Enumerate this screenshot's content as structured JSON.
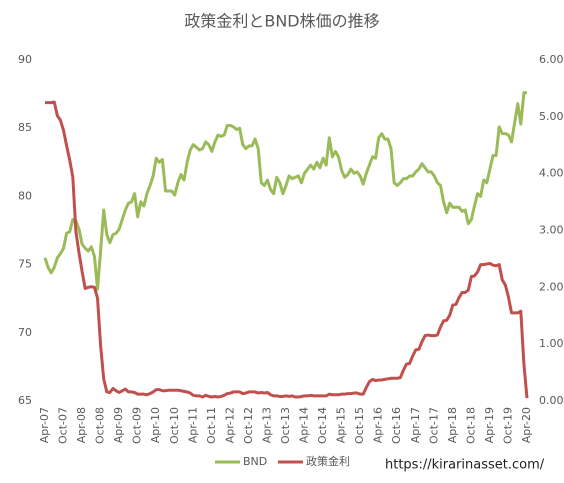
{
  "chart_data": {
    "type": "line",
    "title": "政策金利とBND株価の推移",
    "categories": [
      "Apr-07",
      null,
      null,
      null,
      null,
      null,
      "Oct-07",
      null,
      null,
      null,
      null,
      null,
      "Apr-08",
      null,
      null,
      null,
      null,
      null,
      "Oct-08",
      null,
      null,
      null,
      null,
      null,
      "Apr-09",
      null,
      null,
      null,
      null,
      null,
      "Oct-09",
      null,
      null,
      null,
      null,
      null,
      "Apr-10",
      null,
      null,
      null,
      null,
      null,
      "Oct-10",
      null,
      null,
      null,
      null,
      null,
      "Apr-11",
      null,
      null,
      null,
      null,
      null,
      "Oct-11",
      null,
      null,
      null,
      null,
      null,
      "Apr-12",
      null,
      null,
      null,
      null,
      null,
      "Oct-12",
      null,
      null,
      null,
      null,
      null,
      "Apr-13",
      null,
      null,
      null,
      null,
      null,
      "Oct-13",
      null,
      null,
      null,
      null,
      null,
      "Apr-14",
      null,
      null,
      null,
      null,
      null,
      "Oct-14",
      null,
      null,
      null,
      null,
      null,
      "Apr-15",
      null,
      null,
      null,
      null,
      null,
      "Oct-15",
      null,
      null,
      null,
      null,
      null,
      "Apr-16",
      null,
      null,
      null,
      null,
      null,
      "Oct-16",
      null,
      null,
      null,
      null,
      null,
      "Apr-17",
      null,
      null,
      null,
      null,
      null,
      "Oct-17",
      null,
      null,
      null,
      null,
      null,
      "Apr-18",
      null,
      null,
      null,
      null,
      null,
      "Oct-18",
      null,
      null,
      null,
      null,
      null,
      "Apr-19",
      null,
      null,
      null,
      null,
      null,
      "Oct-19",
      null,
      null,
      null,
      null,
      null,
      "Apr-20"
    ],
    "series": [
      {
        "name": "BND",
        "color": "#9bbb59",
        "values": [
          75.5,
          74.8,
          74.4,
          74.8,
          75.5,
          75.8,
          76.2,
          77.3,
          77.4,
          78.3,
          78.2,
          77.6,
          76.5,
          76.2,
          76.0,
          76.3,
          75.6,
          73.2,
          76.0,
          79.0,
          77.2,
          76.6,
          77.2,
          77.3,
          77.6,
          78.3,
          79.0,
          79.5,
          79.6,
          80.2,
          78.5,
          79.6,
          79.3,
          80.2,
          80.8,
          81.5,
          82.8,
          82.5,
          82.7,
          80.4,
          80.4,
          80.4,
          80.1,
          81.0,
          81.6,
          81.2,
          82.5,
          83.4,
          83.8,
          83.6,
          83.4,
          83.5,
          84.0,
          83.8,
          83.3,
          84.0,
          84.5,
          84.4,
          84.5,
          85.2,
          85.2,
          85.1,
          84.9,
          85.0,
          83.8,
          83.5,
          83.7,
          83.7,
          84.2,
          83.5,
          81.0,
          80.8,
          81.2,
          80.5,
          80.2,
          81.4,
          81.0,
          80.2,
          80.8,
          81.5,
          81.3,
          81.4,
          81.5,
          81.0,
          81.7,
          82.0,
          82.3,
          82.0,
          82.5,
          82.1,
          82.8,
          82.3,
          84.3,
          82.9,
          83.3,
          82.9,
          81.9,
          81.4,
          81.6,
          82.0,
          81.7,
          81.8,
          81.5,
          80.9,
          81.7,
          82.3,
          82.9,
          82.8,
          84.3,
          84.6,
          84.2,
          84.2,
          83.5,
          81.0,
          80.8,
          81.0,
          81.3,
          81.3,
          81.5,
          81.5,
          81.8,
          82.0,
          82.4,
          82.1,
          81.8,
          81.8,
          81.5,
          81.0,
          80.8,
          79.6,
          78.8,
          79.5,
          79.2,
          79.2,
          79.2,
          78.9,
          79.0,
          78.0,
          78.3,
          79.3,
          80.2,
          80.0,
          81.2,
          81.0,
          82.0,
          83.0,
          83.0,
          85.1,
          84.6,
          84.6,
          84.5,
          84.0,
          85.4,
          86.8,
          85.3,
          87.6,
          87.6
        ]
      },
      {
        "name": "政策金利",
        "color": "#c0504d",
        "axis": "y2",
        "values": [
          5.25,
          5.25,
          5.25,
          5.26,
          5.02,
          4.94,
          4.76,
          4.49,
          4.24,
          3.94,
          2.98,
          2.61,
          2.28,
          1.98,
          2.0,
          2.01,
          2.0,
          1.81,
          0.97,
          0.39,
          0.16,
          0.15,
          0.22,
          0.18,
          0.15,
          0.18,
          0.21,
          0.16,
          0.16,
          0.15,
          0.12,
          0.12,
          0.12,
          0.11,
          0.13,
          0.16,
          0.2,
          0.2,
          0.18,
          0.18,
          0.19,
          0.19,
          0.19,
          0.19,
          0.18,
          0.17,
          0.16,
          0.14,
          0.1,
          0.09,
          0.09,
          0.07,
          0.1,
          0.08,
          0.07,
          0.08,
          0.07,
          0.08,
          0.1,
          0.13,
          0.14,
          0.16,
          0.16,
          0.16,
          0.13,
          0.14,
          0.16,
          0.16,
          0.16,
          0.14,
          0.15,
          0.14,
          0.15,
          0.11,
          0.09,
          0.09,
          0.08,
          0.08,
          0.09,
          0.08,
          0.09,
          0.07,
          0.07,
          0.08,
          0.09,
          0.09,
          0.1,
          0.09,
          0.09,
          0.09,
          0.09,
          0.09,
          0.12,
          0.11,
          0.11,
          0.11,
          0.12,
          0.12,
          0.13,
          0.13,
          0.14,
          0.14,
          0.12,
          0.12,
          0.24,
          0.34,
          0.38,
          0.36,
          0.37,
          0.37,
          0.38,
          0.39,
          0.4,
          0.4,
          0.4,
          0.41,
          0.54,
          0.65,
          0.66,
          0.79,
          0.9,
          0.91,
          1.04,
          1.15,
          1.16,
          1.15,
          1.15,
          1.16,
          1.3,
          1.41,
          1.42,
          1.51,
          1.69,
          1.7,
          1.82,
          1.91,
          1.91,
          1.95,
          2.19,
          2.2,
          2.27,
          2.4,
          2.4,
          2.41,
          2.42,
          2.39,
          2.38,
          2.4,
          2.13,
          2.04,
          1.83,
          1.55,
          1.55,
          1.55,
          1.58,
          0.65,
          0.05
        ]
      }
    ],
    "ylim": [
      65,
      90
    ],
    "yticks": [
      65,
      70,
      75,
      80,
      85,
      90
    ],
    "y2lim": [
      0,
      6
    ],
    "y2ticks": [
      {
        "value": 0,
        "label": "0.00"
      },
      {
        "value": 1,
        "label": "1.00"
      },
      {
        "value": 2,
        "label": "2.00"
      },
      {
        "value": 3,
        "label": "3.00"
      },
      {
        "value": 4,
        "label": "4.00"
      },
      {
        "value": 5,
        "label": "5.00"
      },
      {
        "value": 6,
        "label": "6.00"
      }
    ],
    "grid": false,
    "legend": "bottom",
    "annotation": "https://kirarinasset.com/"
  }
}
